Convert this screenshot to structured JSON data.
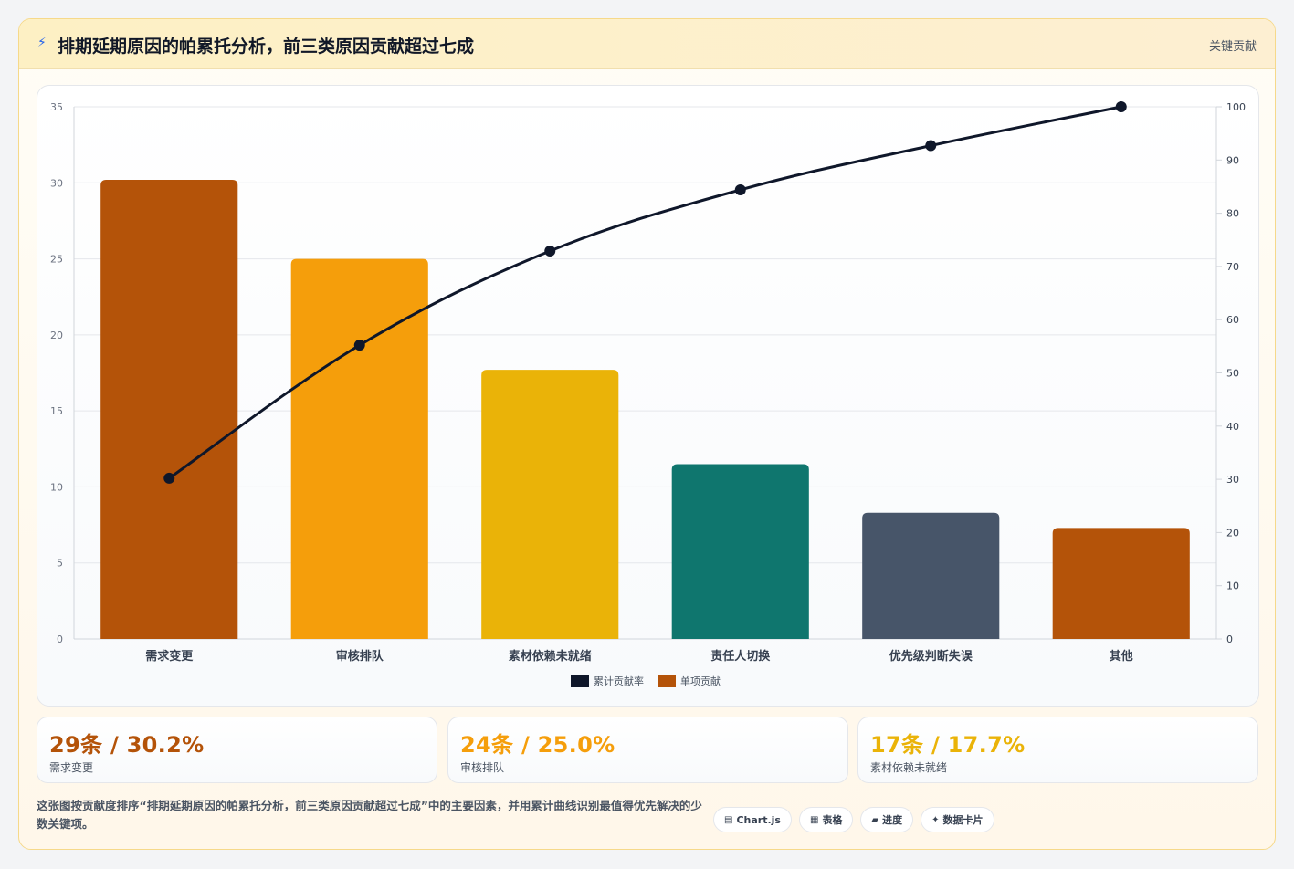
{
  "header": {
    "icon": "lightning-icon",
    "title": "排期延期原因的帕累托分析，前三类原因贡献超过七成",
    "badge": "关键贡献"
  },
  "chart_data": {
    "type": "bar",
    "categories": [
      "需求变更",
      "审核排队",
      "素材依赖未就绪",
      "责任人切换",
      "优先级判断失误",
      "其他"
    ],
    "series": [
      {
        "name": "单项贡献",
        "type": "bar",
        "axis": "left",
        "values": [
          30.2,
          25.0,
          17.7,
          11.5,
          8.3,
          7.3
        ]
      },
      {
        "name": "累计贡献率",
        "type": "line",
        "axis": "right",
        "values": [
          30.2,
          55.2,
          72.9,
          84.4,
          92.7,
          100
        ]
      }
    ],
    "bar_colors": [
      "#b45309",
      "#f59e0b",
      "#eab308",
      "#0f766e",
      "#475569",
      "#b45309"
    ],
    "line_color": "#0f172a",
    "ylim": [
      0,
      35
    ],
    "yticks": [
      0,
      5,
      10,
      15,
      20,
      25,
      30,
      35
    ],
    "y2lim": [
      0,
      100
    ],
    "y2ticks": [
      0,
      10,
      20,
      30,
      40,
      50,
      60,
      70,
      80,
      90,
      100
    ],
    "grid": true,
    "legend": {
      "position": "bottom"
    },
    "legend_entries": [
      {
        "label": "累计贡献率",
        "color": "#0f172a"
      },
      {
        "label": "单项贡献",
        "color": "#b45309"
      }
    ]
  },
  "stats": [
    {
      "value": "29条 / 30.2%",
      "label": "需求变更",
      "color": "#b45309"
    },
    {
      "value": "24条 / 25.0%",
      "label": "审核排队",
      "color": "#f59e0b"
    },
    {
      "value": "17条 / 17.7%",
      "label": "素材依赖未就绪",
      "color": "#eab308"
    }
  ],
  "footer": {
    "description": "这张图按贡献度排序“排期延期原因的帕累托分析，前三类原因贡献超过七成”中的主要因素，并用累计曲线识别最值得优先解决的少数关键项。",
    "tags": [
      {
        "icon": "chart-icon",
        "label": "Chart.js"
      },
      {
        "icon": "table-icon",
        "label": "表格"
      },
      {
        "icon": "progress-icon",
        "label": "进度"
      },
      {
        "icon": "sparkle-icon",
        "label": "数据卡片"
      }
    ]
  }
}
